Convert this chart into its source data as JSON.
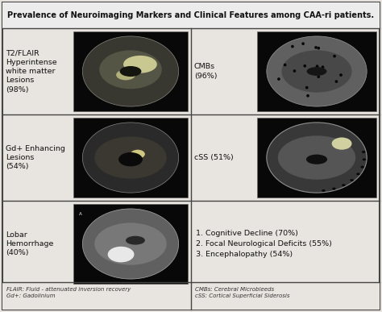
{
  "title": "Prevalence of Neuroimaging Markers and Clinical Features among CAA-ri patients.",
  "rows": [
    {
      "left_label": "T2/FLAIR\nHyperintense\nwhite matter\nLesions\n(98%)",
      "right_label": "CMBs\n(96%)"
    },
    {
      "left_label": "Gd+ Enhancing\nLesions\n(54%)",
      "right_label": "cSS (51%)"
    },
    {
      "left_label": "Lobar\nHemorrhage\n(40%)",
      "right_label": "1. Cognitive Decline (70%)\n2. Focal Neurological Deficits (55%)\n3. Encephalopathy (54%)"
    }
  ],
  "footnote_left": "FLAIR: Fluid - attenuated inversion recovery\nGd+: Gadolinium",
  "footnote_right": "CMBs: Cerebral Microbleeds\ncSS: Cortical Superficial Siderosis",
  "bg_color": "#e8e4df",
  "border_color": "#444444",
  "image_bg": "#0a0a0a",
  "text_color": "#111111",
  "footnote_color": "#333333",
  "title_fontsize": 7.0,
  "label_fontsize": 6.8,
  "footnote_fontsize": 5.0
}
